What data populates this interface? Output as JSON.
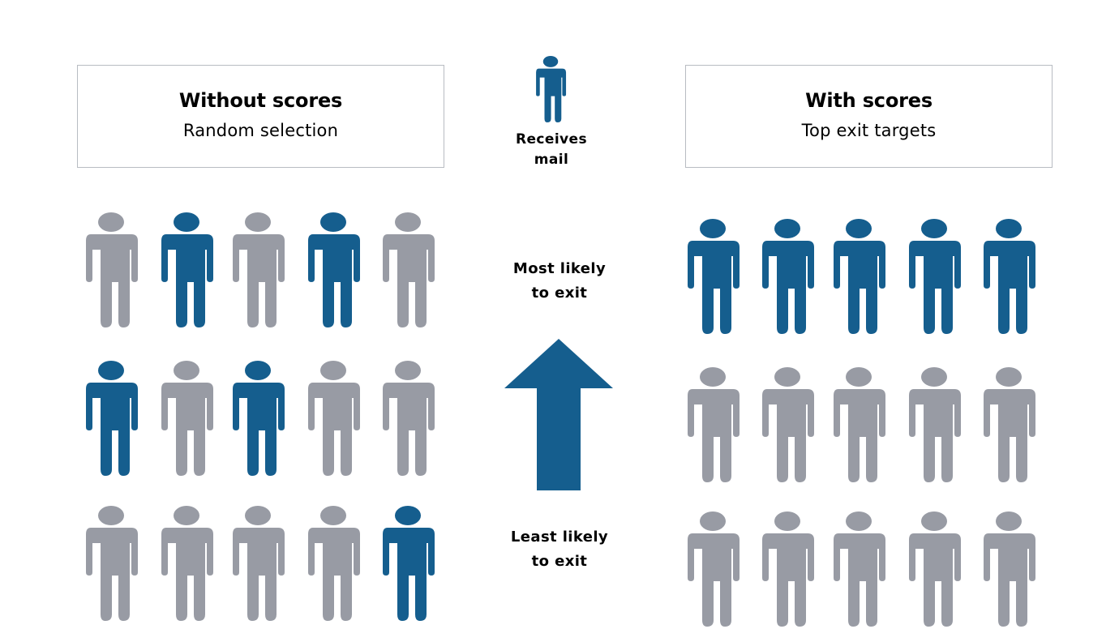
{
  "colors": {
    "blue": "#155e8e",
    "gray": "#989ba4",
    "box_border": "#b8bcc2"
  },
  "left_panel": {
    "title": "Without scores",
    "subtitle": "Random selection",
    "rows": [
      [
        "gray",
        "blue",
        "gray",
        "blue",
        "gray"
      ],
      [
        "blue",
        "gray",
        "blue",
        "gray",
        "gray"
      ],
      [
        "gray",
        "gray",
        "gray",
        "gray",
        "blue"
      ]
    ]
  },
  "right_panel": {
    "title": "With scores",
    "subtitle": "Top exit targets",
    "rows": [
      [
        "blue",
        "blue",
        "blue",
        "blue",
        "blue"
      ],
      [
        "gray",
        "gray",
        "gray",
        "gray",
        "gray"
      ],
      [
        "gray",
        "gray",
        "gray",
        "gray",
        "gray"
      ]
    ]
  },
  "legend": {
    "icon": "person-icon",
    "label_line1": "Receives",
    "label_line2": "mail"
  },
  "axis": {
    "icon": "up-arrow-icon",
    "top_line1": "Most likely",
    "top_line2": "to exit",
    "bottom_line1": "Least likely",
    "bottom_line2": "to exit"
  }
}
